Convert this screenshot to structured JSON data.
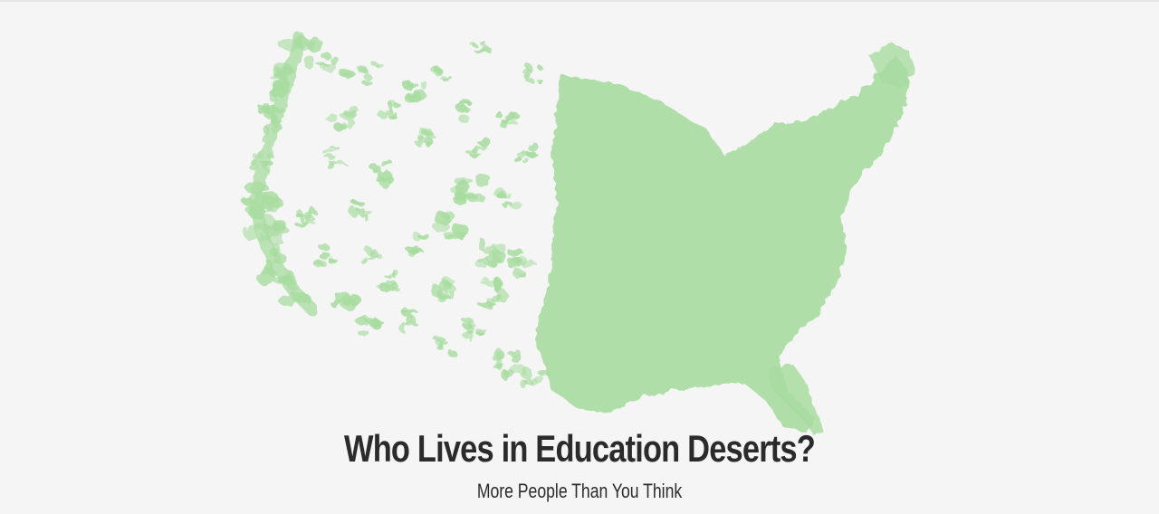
{
  "header": {
    "title": "Who Lives in Education Deserts?",
    "subtitle": "More People Than You Think"
  },
  "map": {
    "region": "contiguous-united-states",
    "icon": "us-map-icon",
    "fill_color": "#a8dca0",
    "background_color": "#f5f5f5"
  }
}
